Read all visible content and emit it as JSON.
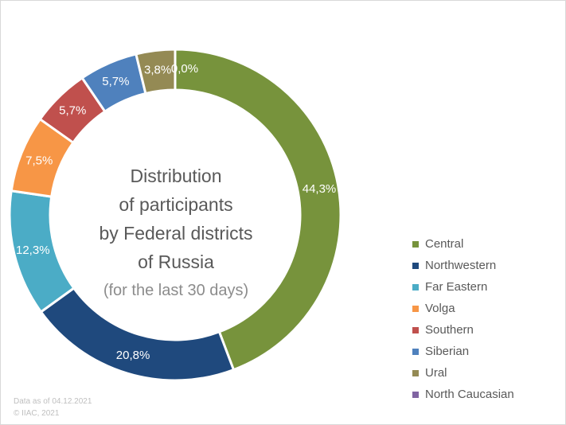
{
  "chart_data": {
    "type": "pie",
    "style": "donut",
    "title_lines": [
      "Distribution",
      "of participants",
      "by Federal districts",
      "of Russia"
    ],
    "subtitle": "(for the last 30 days)",
    "legend_position": "right",
    "slices": [
      {
        "name": "Central",
        "value": 44.3,
        "label": "44,3%",
        "color": "#77933c"
      },
      {
        "name": "Northwestern",
        "value": 20.8,
        "label": "20,8%",
        "color": "#1f497d"
      },
      {
        "name": "Far Eastern",
        "value": 12.3,
        "label": "12,3%",
        "color": "#4bacc6"
      },
      {
        "name": "Volga",
        "value": 7.5,
        "label": "7,5%",
        "color": "#f79646"
      },
      {
        "name": "Southern",
        "value": 5.7,
        "label": "5,7%",
        "color": "#c0504d"
      },
      {
        "name": "Siberian",
        "value": 5.7,
        "label": "5,7%",
        "color": "#4f81bd"
      },
      {
        "name": "Ural",
        "value": 3.8,
        "label": "3,8%",
        "color": "#948a54"
      },
      {
        "name": "North Caucasian",
        "value": 0.0,
        "label": "0,0%",
        "color": "#8064a2"
      }
    ]
  },
  "footnote": {
    "line1": "Data as of 04.12.2021",
    "line2": "© IIAC, 2021"
  }
}
